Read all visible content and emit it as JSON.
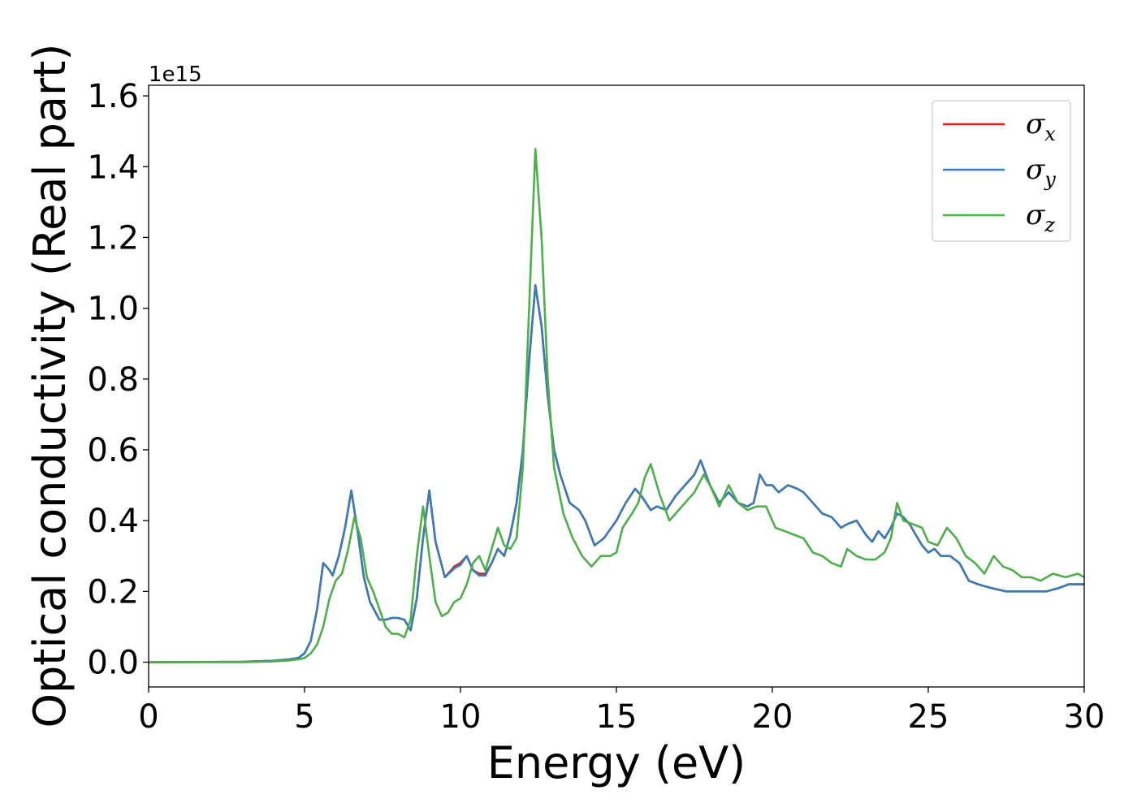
{
  "chart_data": {
    "type": "line",
    "xlabel": "Energy (eV)",
    "ylabel": "Optical conductivity (Real part)",
    "y_offset_label": "1e15",
    "xlim": [
      0,
      30
    ],
    "ylim": [
      -0.07,
      1.63
    ],
    "xticks": [
      0,
      5,
      10,
      15,
      20,
      25,
      30
    ],
    "yticks": [
      0.0,
      0.2,
      0.4,
      0.6,
      0.8,
      1.0,
      1.2,
      1.4,
      1.6
    ],
    "grid": false,
    "legend_position": "top-right",
    "series": [
      {
        "name": "σx",
        "symbol": "σ",
        "subscript": "x",
        "color": "#e41a1c",
        "x": [
          0,
          3,
          4,
          4.5,
          4.8,
          5.0,
          5.2,
          5.4,
          5.6,
          5.8,
          5.9,
          6.1,
          6.3,
          6.5,
          6.7,
          6.9,
          7.1,
          7.4,
          7.6,
          7.8,
          8.0,
          8.2,
          8.4,
          8.6,
          8.8,
          9.0,
          9.2,
          9.5,
          9.8,
          10.0,
          10.2,
          10.4,
          10.6,
          10.8,
          11.0,
          11.2,
          11.4,
          11.6,
          11.8,
          12.0,
          12.2,
          12.4,
          12.6,
          12.8,
          13.0,
          13.2,
          13.5,
          13.8,
          14.0,
          14.3,
          14.6,
          15.0,
          15.3,
          15.6,
          15.8,
          16.1,
          16.3,
          16.6,
          16.9,
          17.2,
          17.5,
          17.7,
          18.0,
          18.3,
          18.6,
          18.9,
          19.2,
          19.4,
          19.6,
          19.8,
          20.0,
          20.2,
          20.5,
          20.8,
          21.0,
          21.3,
          21.6,
          21.9,
          22.2,
          22.4,
          22.7,
          23.0,
          23.2,
          23.4,
          23.6,
          23.8,
          24.0,
          24.2,
          24.4,
          24.6,
          24.8,
          25.0,
          25.2,
          25.4,
          25.7,
          26.0,
          26.3,
          26.6,
          27.0,
          27.5,
          28.0,
          28.5,
          28.8,
          29.2,
          29.5,
          30.0
        ],
        "y": [
          0.0,
          0.001,
          0.004,
          0.008,
          0.012,
          0.025,
          0.06,
          0.15,
          0.28,
          0.26,
          0.245,
          0.3,
          0.38,
          0.485,
          0.37,
          0.24,
          0.17,
          0.12,
          0.12,
          0.125,
          0.125,
          0.12,
          0.09,
          0.18,
          0.35,
          0.485,
          0.34,
          0.24,
          0.27,
          0.28,
          0.3,
          0.26,
          0.25,
          0.25,
          0.28,
          0.32,
          0.3,
          0.36,
          0.45,
          0.6,
          0.85,
          1.065,
          0.95,
          0.75,
          0.6,
          0.53,
          0.45,
          0.43,
          0.4,
          0.33,
          0.35,
          0.4,
          0.45,
          0.49,
          0.47,
          0.43,
          0.44,
          0.43,
          0.47,
          0.5,
          0.53,
          0.57,
          0.5,
          0.45,
          0.48,
          0.45,
          0.44,
          0.45,
          0.53,
          0.5,
          0.5,
          0.48,
          0.5,
          0.49,
          0.48,
          0.45,
          0.42,
          0.41,
          0.38,
          0.39,
          0.4,
          0.36,
          0.34,
          0.37,
          0.35,
          0.38,
          0.42,
          0.41,
          0.39,
          0.36,
          0.33,
          0.31,
          0.32,
          0.3,
          0.3,
          0.28,
          0.23,
          0.22,
          0.21,
          0.2,
          0.2,
          0.2,
          0.2,
          0.21,
          0.22,
          0.22
        ]
      },
      {
        "name": "σy",
        "symbol": "σ",
        "subscript": "y",
        "color": "#377eb8",
        "x": [
          0,
          3,
          4,
          4.5,
          4.8,
          5.0,
          5.2,
          5.4,
          5.6,
          5.8,
          5.9,
          6.1,
          6.3,
          6.5,
          6.7,
          6.9,
          7.1,
          7.4,
          7.6,
          7.8,
          8.0,
          8.2,
          8.4,
          8.6,
          8.8,
          9.0,
          9.2,
          9.5,
          9.8,
          10.0,
          10.2,
          10.4,
          10.6,
          10.8,
          11.0,
          11.2,
          11.4,
          11.6,
          11.8,
          12.0,
          12.2,
          12.4,
          12.6,
          12.8,
          13.0,
          13.2,
          13.5,
          13.8,
          14.0,
          14.3,
          14.6,
          15.0,
          15.3,
          15.6,
          15.8,
          16.1,
          16.3,
          16.6,
          16.9,
          17.2,
          17.5,
          17.7,
          18.0,
          18.3,
          18.6,
          18.9,
          19.2,
          19.4,
          19.6,
          19.8,
          20.0,
          20.2,
          20.5,
          20.8,
          21.0,
          21.3,
          21.6,
          21.9,
          22.2,
          22.4,
          22.7,
          23.0,
          23.2,
          23.4,
          23.6,
          23.8,
          24.0,
          24.2,
          24.4,
          24.6,
          24.8,
          25.0,
          25.2,
          25.4,
          25.7,
          26.0,
          26.3,
          26.6,
          27.0,
          27.5,
          28.0,
          28.5,
          28.8,
          29.2,
          29.5,
          30.0
        ],
        "y": [
          0.0,
          0.001,
          0.004,
          0.008,
          0.012,
          0.025,
          0.06,
          0.15,
          0.28,
          0.26,
          0.245,
          0.3,
          0.38,
          0.485,
          0.37,
          0.24,
          0.17,
          0.12,
          0.12,
          0.125,
          0.125,
          0.12,
          0.09,
          0.18,
          0.35,
          0.485,
          0.34,
          0.24,
          0.265,
          0.275,
          0.3,
          0.26,
          0.245,
          0.245,
          0.28,
          0.32,
          0.3,
          0.36,
          0.45,
          0.6,
          0.85,
          1.065,
          0.95,
          0.75,
          0.6,
          0.53,
          0.45,
          0.43,
          0.4,
          0.33,
          0.35,
          0.4,
          0.45,
          0.49,
          0.47,
          0.43,
          0.44,
          0.43,
          0.47,
          0.5,
          0.53,
          0.57,
          0.5,
          0.45,
          0.48,
          0.45,
          0.44,
          0.45,
          0.53,
          0.5,
          0.5,
          0.48,
          0.5,
          0.49,
          0.48,
          0.45,
          0.42,
          0.41,
          0.38,
          0.39,
          0.4,
          0.36,
          0.34,
          0.37,
          0.35,
          0.38,
          0.42,
          0.41,
          0.39,
          0.36,
          0.33,
          0.31,
          0.32,
          0.3,
          0.3,
          0.28,
          0.23,
          0.22,
          0.21,
          0.2,
          0.2,
          0.2,
          0.2,
          0.21,
          0.22,
          0.22
        ]
      },
      {
        "name": "σz",
        "symbol": "σ",
        "subscript": "z",
        "color": "#4daf4a",
        "x": [
          0,
          3,
          4,
          4.5,
          4.8,
          5.0,
          5.2,
          5.4,
          5.6,
          5.8,
          6.0,
          6.2,
          6.4,
          6.6,
          6.8,
          7.0,
          7.2,
          7.4,
          7.6,
          7.8,
          8.0,
          8.2,
          8.4,
          8.6,
          8.8,
          9.0,
          9.2,
          9.4,
          9.6,
          9.8,
          10.0,
          10.2,
          10.4,
          10.6,
          10.8,
          11.0,
          11.2,
          11.4,
          11.6,
          11.8,
          12.0,
          12.2,
          12.4,
          12.6,
          12.8,
          13.0,
          13.3,
          13.6,
          13.9,
          14.2,
          14.5,
          14.8,
          15.0,
          15.2,
          15.5,
          15.7,
          15.9,
          16.1,
          16.4,
          16.7,
          16.9,
          17.2,
          17.5,
          17.8,
          18.0,
          18.3,
          18.6,
          18.9,
          19.2,
          19.5,
          19.8,
          20.1,
          20.4,
          20.7,
          21.0,
          21.3,
          21.6,
          21.9,
          22.2,
          22.4,
          22.7,
          23.0,
          23.3,
          23.6,
          23.8,
          24.0,
          24.2,
          24.5,
          24.8,
          25.0,
          25.3,
          25.6,
          25.9,
          26.2,
          26.5,
          26.8,
          27.1,
          27.4,
          27.7,
          28.0,
          28.3,
          28.6,
          29.0,
          29.4,
          29.8,
          30.0
        ],
        "y": [
          0.0,
          0.0,
          0.002,
          0.005,
          0.008,
          0.012,
          0.025,
          0.05,
          0.1,
          0.18,
          0.23,
          0.25,
          0.32,
          0.41,
          0.35,
          0.24,
          0.2,
          0.15,
          0.1,
          0.08,
          0.08,
          0.07,
          0.12,
          0.3,
          0.44,
          0.3,
          0.17,
          0.13,
          0.14,
          0.17,
          0.18,
          0.22,
          0.28,
          0.3,
          0.26,
          0.32,
          0.38,
          0.33,
          0.32,
          0.35,
          0.55,
          1.0,
          1.45,
          1.2,
          0.8,
          0.55,
          0.42,
          0.35,
          0.3,
          0.27,
          0.3,
          0.3,
          0.31,
          0.38,
          0.42,
          0.45,
          0.52,
          0.56,
          0.47,
          0.4,
          0.42,
          0.45,
          0.48,
          0.53,
          0.5,
          0.44,
          0.5,
          0.45,
          0.43,
          0.44,
          0.44,
          0.38,
          0.37,
          0.36,
          0.35,
          0.31,
          0.3,
          0.28,
          0.27,
          0.32,
          0.3,
          0.29,
          0.29,
          0.31,
          0.35,
          0.45,
          0.4,
          0.39,
          0.38,
          0.34,
          0.33,
          0.38,
          0.35,
          0.3,
          0.28,
          0.25,
          0.3,
          0.27,
          0.26,
          0.24,
          0.24,
          0.23,
          0.25,
          0.24,
          0.25,
          0.24
        ]
      }
    ]
  }
}
